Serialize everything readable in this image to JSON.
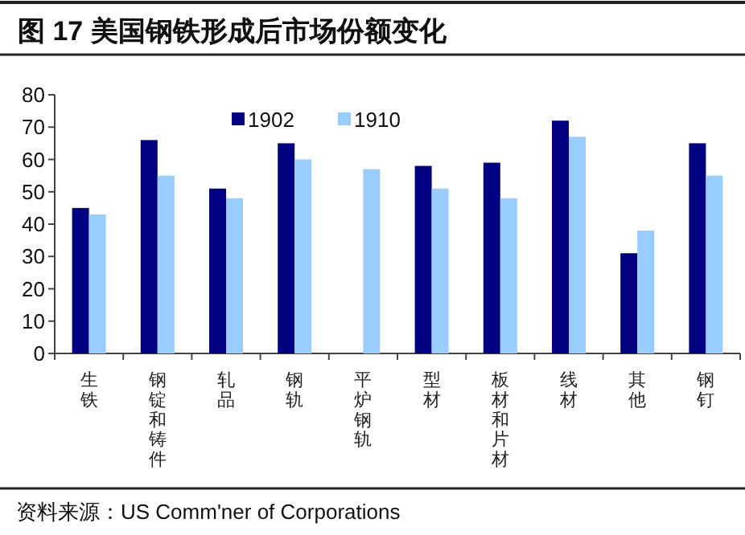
{
  "chart_data": {
    "type": "bar",
    "title": "图 17 美国钢铁形成后市场份额变化",
    "categories": [
      "生铁",
      "钢锭和铸件",
      "轧品",
      "钢轨",
      "平炉钢轨",
      "型材",
      "板材和片材",
      "线材",
      "其他",
      "钢钉"
    ],
    "series": [
      {
        "name": "1902",
        "color": "#000080",
        "values": [
          45,
          66,
          51,
          65,
          null,
          58,
          59,
          72,
          31,
          65
        ]
      },
      {
        "name": "1910",
        "color": "#99ccff",
        "values": [
          43,
          55,
          48,
          60,
          57,
          51,
          48,
          67,
          38,
          55
        ]
      }
    ],
    "ylim": [
      0,
      80
    ],
    "yticks": [
      0,
      10,
      20,
      30,
      40,
      50,
      60,
      70,
      80
    ],
    "legend": "top",
    "annotations": [
      "资料来源：US Comm'ner of Corporations"
    ]
  }
}
